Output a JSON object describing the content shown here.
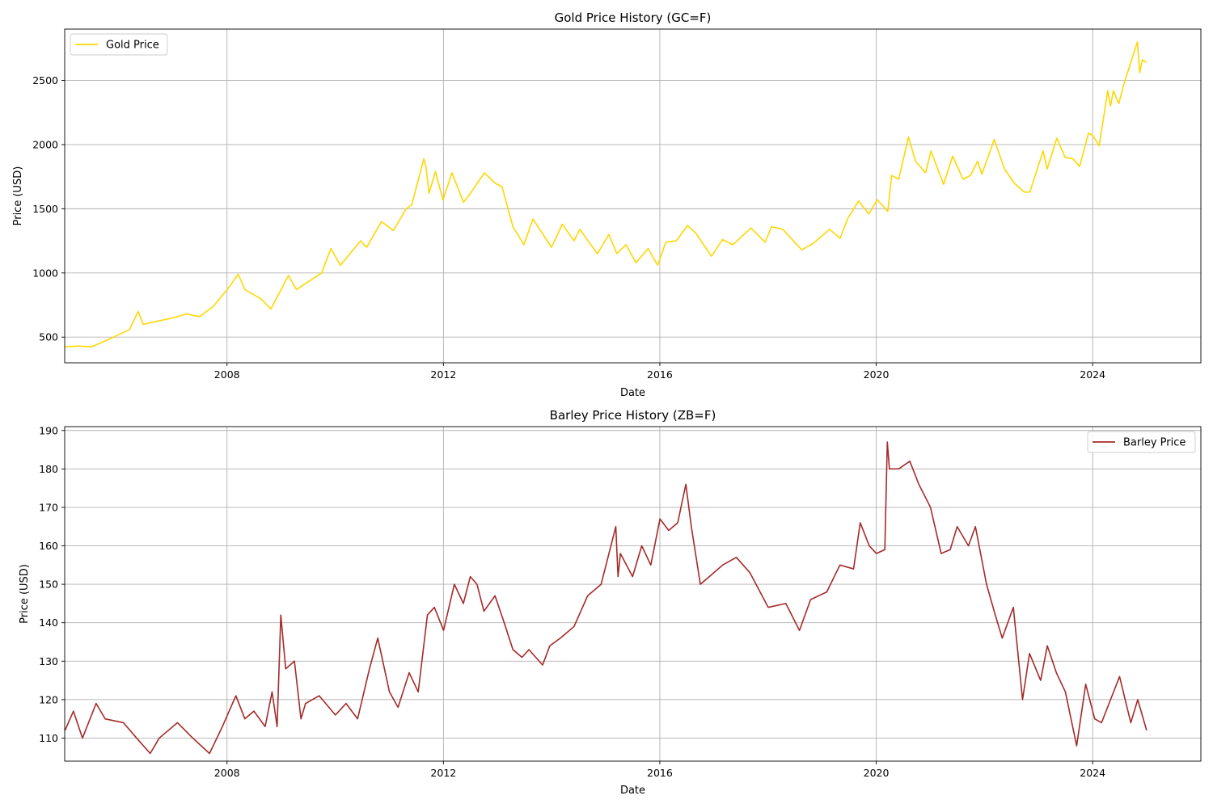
{
  "chart_data": [
    {
      "type": "line",
      "title": "Gold Price History (GC=F)",
      "xlabel": "Date",
      "ylabel": "Price (USD)",
      "xlim": [
        "2005-01-01",
        "2026-01-01"
      ],
      "ylim": [
        300,
        2900
      ],
      "x_ticks": [
        "2008",
        "2012",
        "2016",
        "2020",
        "2024"
      ],
      "y_ticks": [
        "500",
        "1000",
        "1500",
        "2000",
        "2500"
      ],
      "grid": true,
      "legend_position": "upper left",
      "series": [
        {
          "name": "Gold Price",
          "color": "#ffd700",
          "x": [
            "2005-01-03",
            "2005-04-01",
            "2005-07-01",
            "2005-10-01",
            "2006-01-02",
            "2006-03-15",
            "2006-05-12",
            "2006-06-15",
            "2006-09-01",
            "2007-01-02",
            "2007-04-01",
            "2007-07-01",
            "2007-10-01",
            "2008-01-02",
            "2008-03-17",
            "2008-05-01",
            "2008-08-15",
            "2008-10-24",
            "2009-02-20",
            "2009-04-15",
            "2009-07-01",
            "2009-10-01",
            "2009-12-03",
            "2010-02-05",
            "2010-06-21",
            "2010-08-01",
            "2010-11-09",
            "2011-01-28",
            "2011-04-25",
            "2011-06-01",
            "2011-08-22",
            "2011-09-06",
            "2011-09-26",
            "2011-11-08",
            "2011-12-29",
            "2012-02-28",
            "2012-05-16",
            "2012-07-01",
            "2012-10-04",
            "2012-12-15",
            "2013-02-01",
            "2013-04-15",
            "2013-06-28",
            "2013-08-28",
            "2013-12-31",
            "2014-03-14",
            "2014-06-01",
            "2014-07-10",
            "2014-11-06",
            "2015-01-22",
            "2015-03-17",
            "2015-05-18",
            "2015-07-24",
            "2015-10-14",
            "2015-12-17",
            "2016-02-11",
            "2016-04-21",
            "2016-07-06",
            "2016-09-01",
            "2016-12-15",
            "2017-02-27",
            "2017-05-09",
            "2017-09-08",
            "2017-12-12",
            "2018-01-25",
            "2018-04-11",
            "2018-08-16",
            "2018-11-01",
            "2019-02-20",
            "2019-05-02",
            "2019-06-25",
            "2019-09-04",
            "2019-11-12",
            "2020-01-08",
            "2020-03-19",
            "2020-04-14",
            "2020-06-01",
            "2020-08-06",
            "2020-09-23",
            "2020-11-30",
            "2021-01-05",
            "2021-03-31",
            "2021-06-01",
            "2021-08-09",
            "2021-09-29",
            "2021-11-16",
            "2021-12-15",
            "2022-03-08",
            "2022-05-16",
            "2022-07-21",
            "2022-09-27",
            "2022-11-03",
            "2023-02-01",
            "2023-02-28",
            "2023-05-04",
            "2023-06-29",
            "2023-08-21",
            "2023-10-05",
            "2023-12-04",
            "2024-01-02",
            "2024-02-14",
            "2024-04-12",
            "2024-05-01",
            "2024-05-20",
            "2024-06-26",
            "2024-08-01",
            "2024-10-30",
            "2024-11-14",
            "2024-12-02",
            "2024-12-31"
          ],
          "y": [
            425,
            430,
            425,
            470,
            520,
            560,
            700,
            600,
            620,
            650,
            680,
            660,
            740,
            870,
            990,
            870,
            800,
            720,
            980,
            870,
            930,
            1000,
            1190,
            1060,
            1250,
            1200,
            1400,
            1330,
            1500,
            1530,
            1890,
            1820,
            1620,
            1790,
            1570,
            1780,
            1550,
            1620,
            1780,
            1700,
            1670,
            1360,
            1220,
            1420,
            1200,
            1380,
            1250,
            1340,
            1150,
            1300,
            1150,
            1220,
            1080,
            1190,
            1060,
            1240,
            1250,
            1370,
            1310,
            1130,
            1260,
            1220,
            1350,
            1240,
            1360,
            1340,
            1180,
            1230,
            1340,
            1270,
            1430,
            1560,
            1460,
            1570,
            1480,
            1760,
            1730,
            2060,
            1870,
            1780,
            1950,
            1690,
            1910,
            1730,
            1760,
            1870,
            1770,
            2040,
            1810,
            1700,
            1630,
            1630,
            1950,
            1810,
            2050,
            1900,
            1890,
            1830,
            2090,
            2070,
            1990,
            2420,
            2300,
            2420,
            2320,
            2480,
            2800,
            2560,
            2660,
            2640
          ]
        }
      ]
    },
    {
      "type": "line",
      "title": "Barley Price History (ZB=F)",
      "xlabel": "Date",
      "ylabel": "Price (USD)",
      "xlim": [
        "2005-01-01",
        "2026-01-01"
      ],
      "ylim": [
        104,
        191
      ],
      "x_ticks": [
        "2008",
        "2012",
        "2016",
        "2020",
        "2024"
      ],
      "y_ticks": [
        "110",
        "120",
        "130",
        "140",
        "150",
        "160",
        "170",
        "180",
        "190"
      ],
      "grid": true,
      "legend_position": "upper right",
      "series": [
        {
          "name": "Barley Price",
          "color": "#a52a2a",
          "x": [
            "2005-01-03",
            "2005-03-01",
            "2005-05-01",
            "2005-08-01",
            "2005-10-01",
            "2006-02-01",
            "2006-05-01",
            "2006-08-01",
            "2006-10-01",
            "2007-02-01",
            "2007-05-15",
            "2007-09-05",
            "2007-12-01",
            "2008-03-01",
            "2008-05-01",
            "2008-07-01",
            "2008-09-15",
            "2008-11-01",
            "2008-12-05",
            "2008-12-30",
            "2009-02-01",
            "2009-04-01",
            "2009-05-15",
            "2009-06-15",
            "2009-09-15",
            "2010-01-02",
            "2010-03-15",
            "2010-06-01",
            "2010-08-20",
            "2010-10-15",
            "2011-01-02",
            "2011-03-01",
            "2011-05-15",
            "2011-07-15",
            "2011-09-15",
            "2011-11-01",
            "2012-01-02",
            "2012-03-15",
            "2012-05-15",
            "2012-07-01",
            "2012-08-15",
            "2012-10-01",
            "2012-12-15",
            "2013-02-15",
            "2013-04-15",
            "2013-06-15",
            "2013-08-01",
            "2013-11-01",
            "2013-12-20",
            "2014-03-01",
            "2014-06-01",
            "2014-09-01",
            "2014-12-01",
            "2015-03-10",
            "2015-03-25",
            "2015-04-10",
            "2015-07-01",
            "2015-09-01",
            "2015-11-01",
            "2016-01-02",
            "2016-03-01",
            "2016-05-01",
            "2016-06-25",
            "2016-08-01",
            "2016-10-01",
            "2016-12-01",
            "2017-03-01",
            "2017-06-01",
            "2017-09-01",
            "2018-01-02",
            "2018-05-01",
            "2018-08-01",
            "2018-10-15",
            "2019-02-01",
            "2019-05-01",
            "2019-08-01",
            "2019-09-15",
            "2019-11-15",
            "2020-01-02",
            "2020-02-28",
            "2020-03-16",
            "2020-03-30",
            "2020-06-01",
            "2020-08-15",
            "2020-10-15",
            "2021-01-02",
            "2021-03-15",
            "2021-05-15",
            "2021-07-01",
            "2021-09-15",
            "2021-11-01",
            "2022-01-15",
            "2022-03-15",
            "2022-05-01",
            "2022-07-15",
            "2022-09-15",
            "2022-11-01",
            "2023-01-15",
            "2023-03-01",
            "2023-05-01",
            "2023-07-01",
            "2023-09-15",
            "2023-11-15",
            "2024-01-15",
            "2024-03-01",
            "2024-05-01",
            "2024-07-01",
            "2024-09-15",
            "2024-11-01",
            "2024-12-31"
          ],
          "y": [
            112,
            117,
            110,
            119,
            115,
            114,
            110,
            106,
            110,
            114,
            110,
            106,
            113,
            121,
            115,
            117,
            113,
            122,
            113,
            142,
            128,
            130,
            115,
            119,
            121,
            116,
            119,
            115,
            128,
            136,
            122,
            118,
            127,
            122,
            142,
            144,
            138,
            150,
            145,
            152,
            150,
            143,
            147,
            140,
            133,
            131,
            133,
            129,
            134,
            136,
            139,
            147,
            150,
            165,
            152,
            158,
            152,
            160,
            155,
            167,
            164,
            166,
            176,
            165,
            150,
            152,
            155,
            157,
            153,
            144,
            145,
            138,
            146,
            148,
            155,
            154,
            166,
            160,
            158,
            159,
            187,
            180,
            180,
            182,
            176,
            170,
            158,
            159,
            165,
            160,
            165,
            150,
            142,
            136,
            144,
            120,
            132,
            125,
            134,
            127,
            122,
            108,
            124,
            115,
            114,
            120,
            126,
            114,
            120,
            112
          ]
        }
      ]
    }
  ]
}
